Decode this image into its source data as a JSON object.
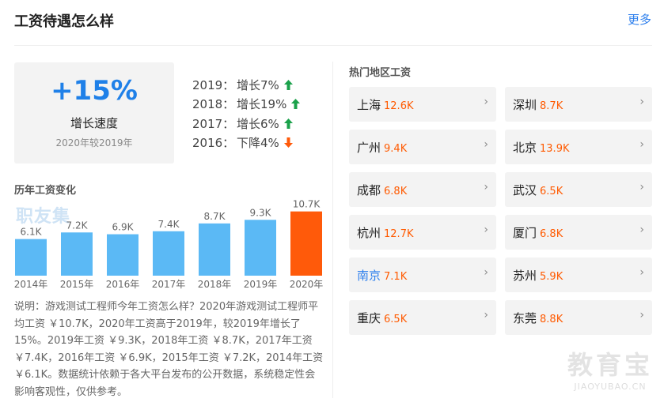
{
  "header": {
    "title": "工资待遇怎么样",
    "more": "更多"
  },
  "rate": {
    "value": "+15%",
    "label": "增长速度",
    "sub": "2020年较2019年"
  },
  "growth": [
    {
      "year": "2019：",
      "text": "增长7%",
      "dir": "up"
    },
    {
      "year": "2018：",
      "text": "增长19%",
      "dir": "up"
    },
    {
      "year": "2017：",
      "text": "增长6%",
      "dir": "up"
    },
    {
      "year": "2016：",
      "text": "下降4%",
      "dir": "down"
    }
  ],
  "history": {
    "title": "历年工资变化",
    "watermark": "职友集"
  },
  "chart_data": {
    "type": "bar",
    "categories": [
      "2014年",
      "2015年",
      "2016年",
      "2017年",
      "2018年",
      "2019年",
      "2020年"
    ],
    "values": [
      6.1,
      7.2,
      6.9,
      7.4,
      8.7,
      9.3,
      10.7
    ],
    "value_labels": [
      "6.1K",
      "7.2K",
      "6.9K",
      "7.4K",
      "8.7K",
      "9.3K",
      "10.7K"
    ],
    "colors": {
      "normal": "#5bb9f5",
      "highlight": "#ff5a0a"
    },
    "highlight_index": 6
  },
  "description": "说明：游戏测试工程师今年工资怎么样？2020年游戏测试工程师平均工资 ￥10.7K，2020年工资高于2019年，较2019年增长了15%。2019年工资 ￥9.3K，2018年工资 ￥8.7K，2017年工资 ￥7.4K，2016年工资 ￥6.9K，2015年工资 ￥7.2K，2014年工资 ￥6.1K。数据统计依赖于各大平台发布的公开数据，系统稳定性会影响客观性，仅供参考。",
  "regions": {
    "title": "热门地区工资",
    "items": [
      {
        "name": "上海",
        "value": "12.6K"
      },
      {
        "name": "深圳",
        "value": "8.7K"
      },
      {
        "name": "广州",
        "value": "9.4K"
      },
      {
        "name": "北京",
        "value": "13.9K"
      },
      {
        "name": "成都",
        "value": "6.8K"
      },
      {
        "name": "武汉",
        "value": "6.5K"
      },
      {
        "name": "杭州",
        "value": "12.7K"
      },
      {
        "name": "厦门",
        "value": "6.8K"
      },
      {
        "name": "南京",
        "value": "7.1K"
      },
      {
        "name": "苏州",
        "value": "5.9K"
      },
      {
        "name": "重庆",
        "value": "6.5K"
      },
      {
        "name": "东莞",
        "value": "8.8K"
      }
    ]
  },
  "watermark": {
    "big": "教育宝",
    "small": "JIAOYUBAO.CN"
  },
  "colors": {
    "accent": "#1f80e8",
    "up": "#1aa14a",
    "down": "#ff5a0a",
    "value": "#ff5a00"
  }
}
